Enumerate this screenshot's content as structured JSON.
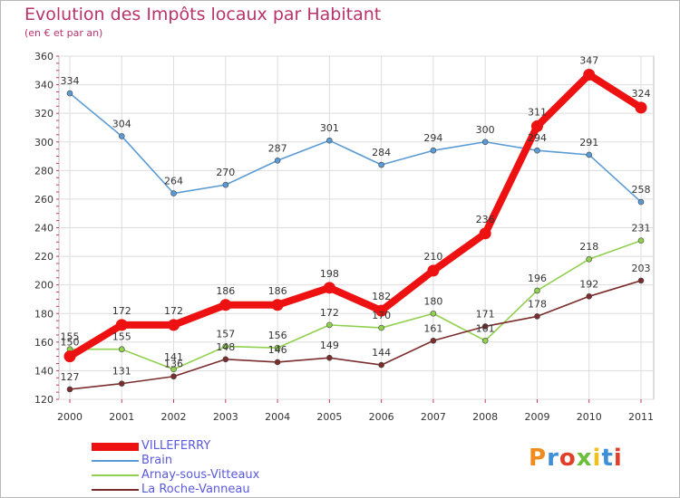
{
  "header": {
    "title": "Evolution des Impôts locaux par Habitant",
    "subtitle": "(en € et par an)"
  },
  "brand": {
    "text": "Proxiti",
    "colors": [
      "#f08c1e",
      "#3d8fd6",
      "#e0402a",
      "#6bbf3a",
      "#f0c020",
      "#3d8fd6",
      "#e0402a"
    ]
  },
  "chart_data": {
    "type": "line",
    "x": [
      2000,
      2001,
      2002,
      2003,
      2004,
      2005,
      2006,
      2007,
      2008,
      2009,
      2010,
      2011
    ],
    "ylim": [
      120,
      360
    ],
    "yticks": [
      120,
      140,
      160,
      180,
      200,
      220,
      240,
      260,
      280,
      300,
      320,
      340,
      360
    ],
    "grid": true,
    "legend_position": "bottom-left",
    "series": [
      {
        "name": "VILLEFERRY",
        "color": "#ee1111",
        "values": [
          150,
          172,
          172,
          186,
          186,
          198,
          182,
          210,
          236,
          311,
          347,
          324
        ]
      },
      {
        "name": "Brain",
        "color": "#5b9bd5",
        "values": [
          334,
          304,
          264,
          270,
          287,
          301,
          284,
          294,
          300,
          294,
          291,
          258
        ]
      },
      {
        "name": "Arnay-sous-Vitteaux",
        "color": "#92d050",
        "values": [
          155,
          155,
          141,
          157,
          156,
          172,
          170,
          180,
          161,
          196,
          218,
          231
        ]
      },
      {
        "name": "La Roche-Vanneau",
        "color": "#7b2c2c",
        "values": [
          127,
          131,
          136,
          148,
          146,
          149,
          144,
          161,
          171,
          178,
          192,
          203
        ]
      }
    ]
  }
}
